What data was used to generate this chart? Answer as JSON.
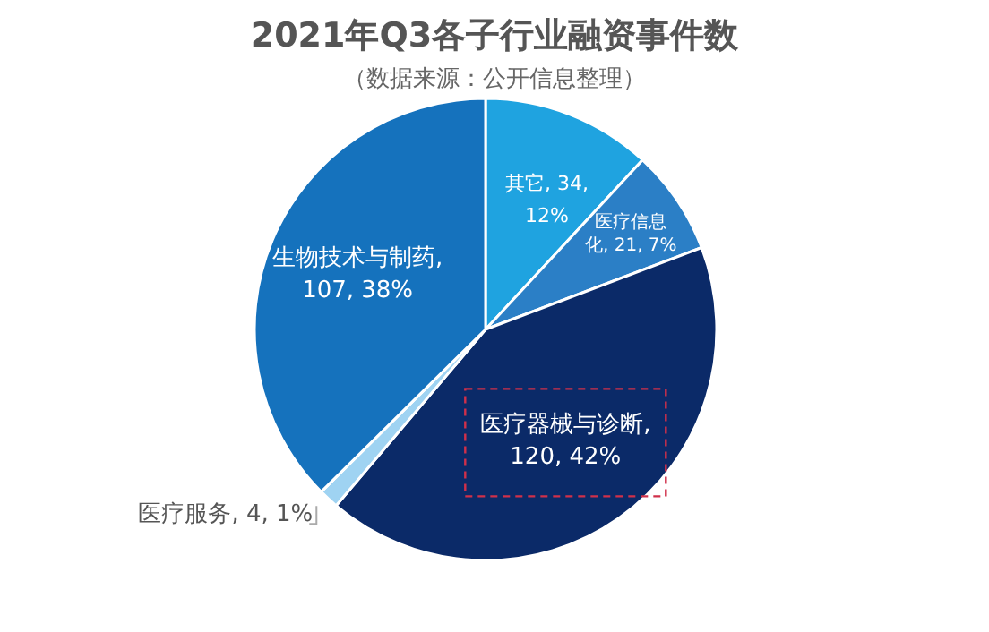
{
  "chart_data": {
    "type": "pie",
    "title": "2021年Q3各子行业融资事件数",
    "subtitle": "（数据来源：公开信息整理）",
    "categories": [
      "其它",
      "医疗信息化",
      "医疗器械与诊断",
      "医疗服务",
      "生物技术与制药"
    ],
    "values": [
      34,
      21,
      120,
      4,
      107
    ],
    "colors": [
      "#1fa3e0",
      "#2b7fc6",
      "#0b2a68",
      "#9fd3f2",
      "#1572bd"
    ],
    "value_labels": [
      ", 34, 12%",
      ", 21, 7%",
      ", 120, 42%",
      ", 4, 1%",
      ", 107, 38%"
    ]
  }
}
